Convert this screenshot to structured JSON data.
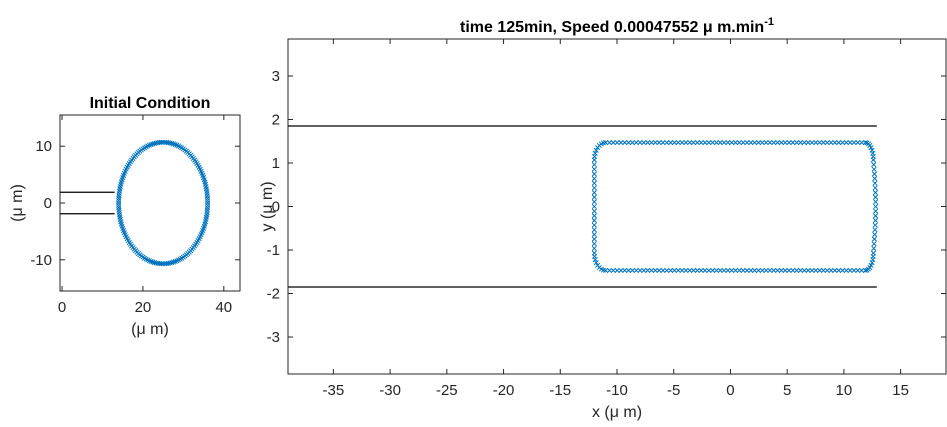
{
  "chart_data": [
    {
      "type": "scatter",
      "title": "Initial Condition",
      "xlabel": "(μ m)",
      "ylabel": "(μ m)",
      "xlim": [
        -0.5,
        44
      ],
      "ylim": [
        -15.5,
        15.5
      ],
      "xticks": [
        0,
        20,
        40
      ],
      "yticks": [
        -10,
        0,
        10
      ],
      "grid": false,
      "channel_walls": [
        {
          "x": [
            -0.5,
            13
          ],
          "y": [
            1.9,
            1.9
          ]
        },
        {
          "x": [
            -0.5,
            13
          ],
          "y": [
            -1.9,
            -1.9
          ]
        }
      ],
      "cell": {
        "shape": "ellipse",
        "center": [
          25,
          0
        ],
        "radius_x": 11,
        "radius_y": 10.7,
        "points": 160,
        "marker": "x",
        "color": "#0072BD"
      }
    },
    {
      "type": "scatter",
      "title": "time 125min, Speed 0.00047552 μ m.min",
      "title_superscript": "-1",
      "xlabel": "x (μ m)",
      "ylabel": "y (μ m)",
      "xlim": [
        -39,
        19
      ],
      "ylim": [
        -3.85,
        3.85
      ],
      "xticks": [
        -35,
        -30,
        -25,
        -20,
        -15,
        -10,
        -5,
        0,
        5,
        10,
        15
      ],
      "yticks": [
        -3,
        -2,
        -1,
        0,
        1,
        2,
        3
      ],
      "grid": false,
      "channel_walls": [
        {
          "x": [
            -39,
            12.9
          ],
          "y": [
            1.85,
            1.85
          ]
        },
        {
          "x": [
            -39,
            12.9
          ],
          "y": [
            -1.85,
            -1.85
          ]
        }
      ],
      "cell": {
        "shape": "rounded-rectangle",
        "x_left": -12,
        "x_right": 12.8,
        "y_top": 1.47,
        "y_bottom": -1.47,
        "corner_radius_x": 1.0,
        "corner_radius_y": 0.4,
        "points": 200,
        "marker": "x",
        "color": "#0072BD"
      }
    }
  ]
}
